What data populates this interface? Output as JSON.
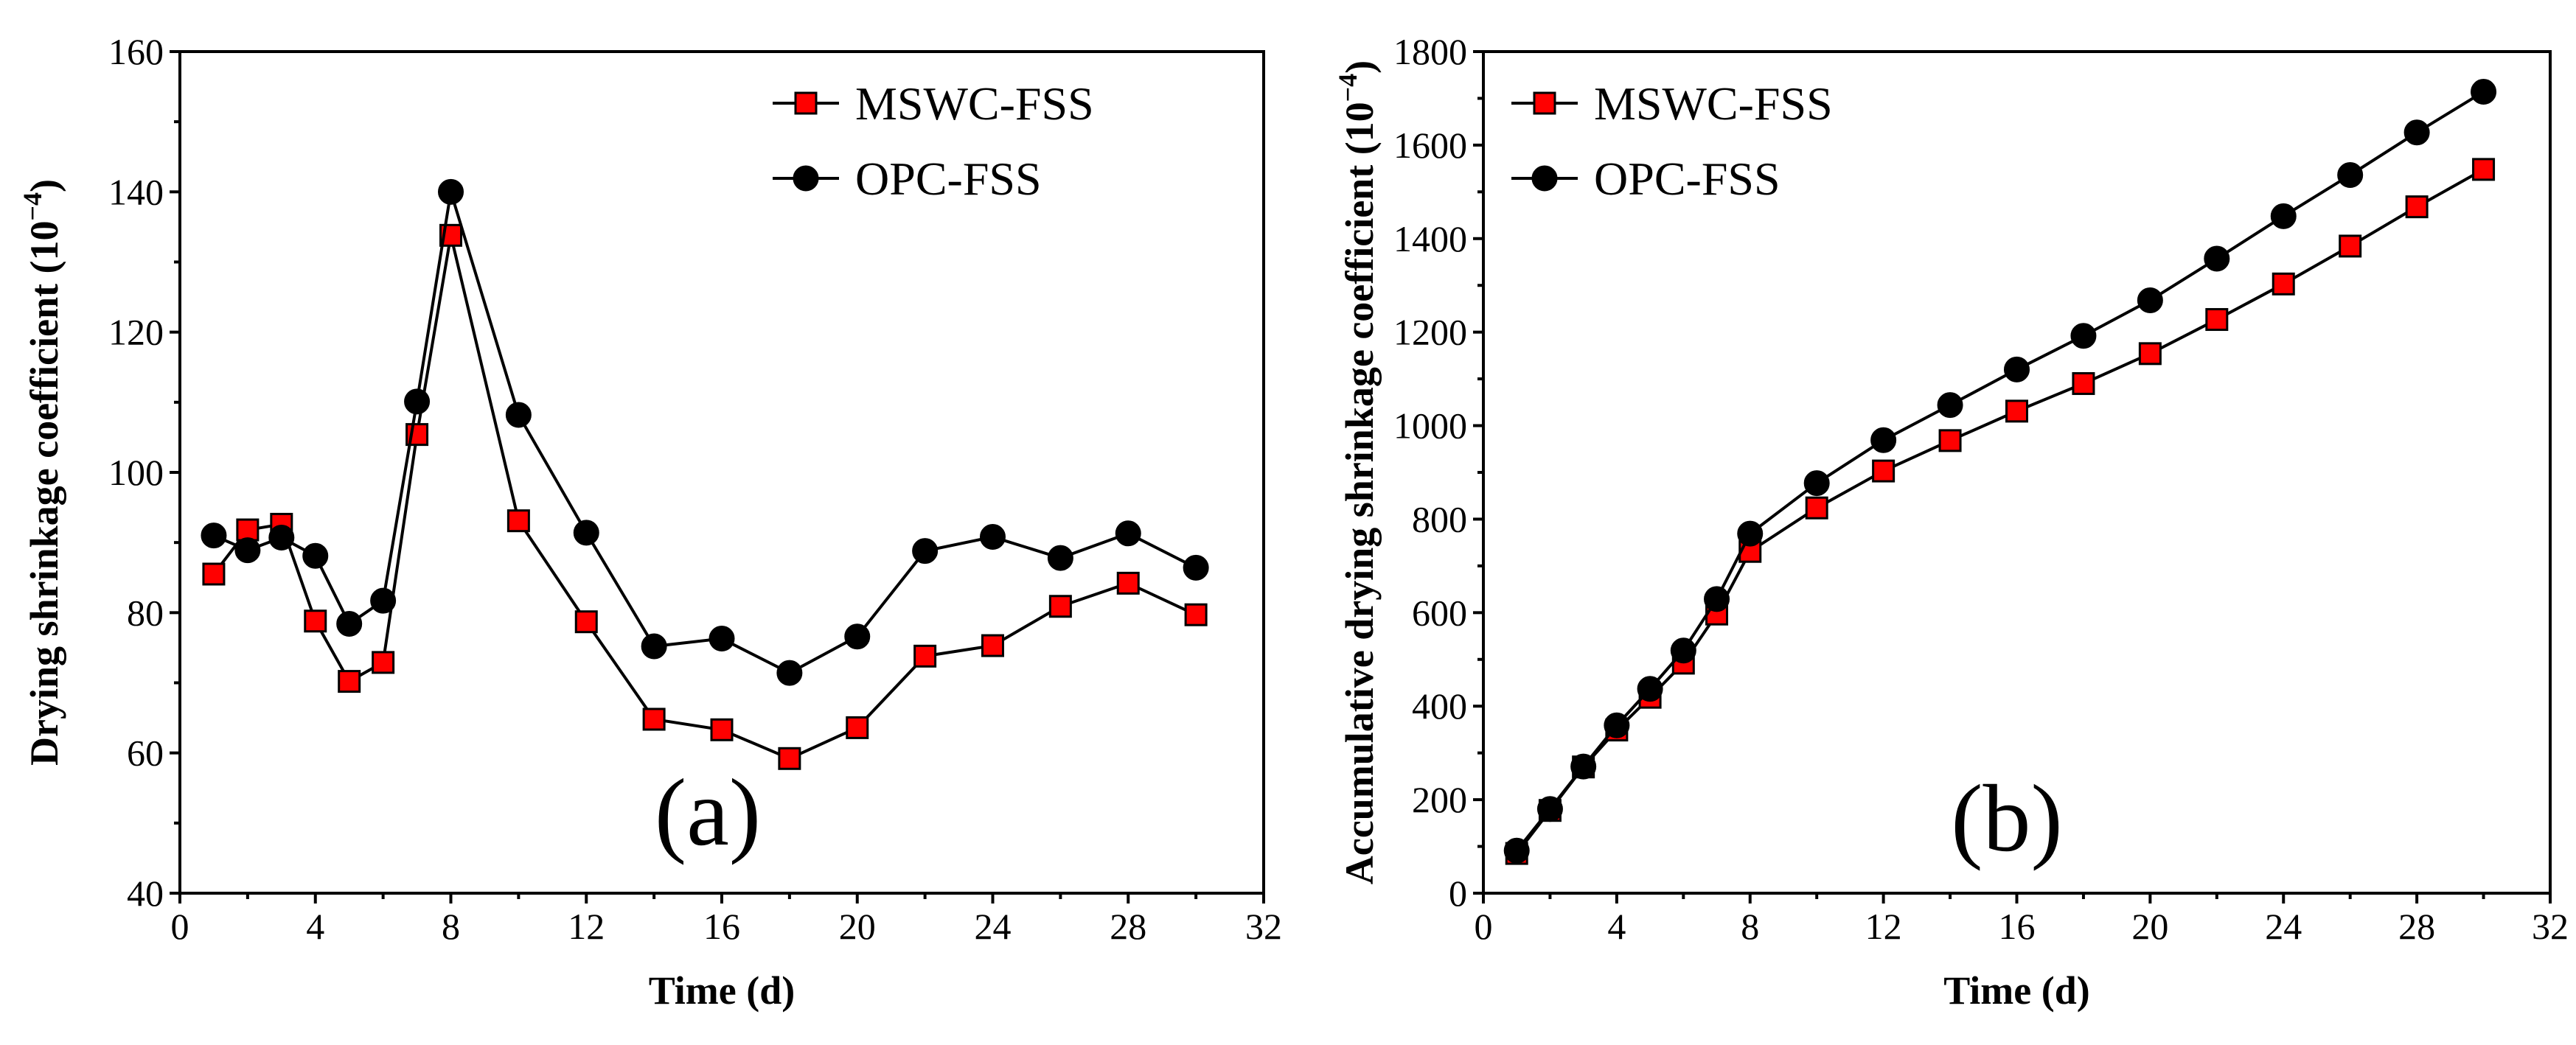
{
  "chart_data": [
    {
      "type": "line",
      "panel_label": "(a)",
      "xlabel": "Time (d)",
      "ylabel": "Drying shrinkage coefficient (10",
      "ylabel_exp": "−4",
      "ylabel_close": ")",
      "xlim": [
        0,
        32
      ],
      "ylim": [
        40,
        160
      ],
      "xticks": [
        0,
        4,
        8,
        12,
        16,
        20,
        24,
        28,
        32
      ],
      "xtick_labels": [
        "0",
        "4",
        "8",
        "12",
        "16",
        "20",
        "24",
        "28",
        "32"
      ],
      "yticks": [
        40,
        60,
        80,
        100,
        120,
        140,
        160
      ],
      "ytick_labels": [
        "40",
        "60",
        "80",
        "100",
        "120",
        "140",
        "160"
      ],
      "legend_position": "top-right",
      "series": [
        {
          "name": "MSWC-FSS",
          "marker": "square",
          "color": "#ff0000",
          "x": [
            1,
            2,
            3,
            4,
            5,
            6,
            7,
            8,
            10,
            12,
            14,
            16,
            18,
            20,
            22,
            24,
            26,
            28,
            30
          ],
          "y": [
            85.5,
            91.8,
            92.6,
            78.8,
            70.2,
            72.9,
            105.4,
            133.8,
            93.1,
            78.7,
            64.8,
            63.3,
            59.2,
            63.6,
            73.8,
            75.3,
            80.9,
            84.2,
            79.7
          ]
        },
        {
          "name": "OPC-FSS",
          "marker": "circle",
          "color": "#000000",
          "x": [
            1,
            2,
            3,
            4,
            5,
            6,
            7,
            8,
            10,
            12,
            14,
            16,
            18,
            20,
            22,
            24,
            26,
            28,
            30
          ],
          "y": [
            91.0,
            88.9,
            90.7,
            88.1,
            78.4,
            81.7,
            110.1,
            140.0,
            108.2,
            91.4,
            75.2,
            76.3,
            71.4,
            76.6,
            88.8,
            90.8,
            87.8,
            91.3,
            86.4
          ]
        }
      ]
    },
    {
      "type": "line",
      "panel_label": "(b)",
      "xlabel": "Time (d)",
      "ylabel": "Accumulative drying shrinkage coefficient (10",
      "ylabel_exp": "−4",
      "ylabel_close": ")",
      "xlim": [
        0,
        32
      ],
      "ylim": [
        0,
        1800
      ],
      "xticks": [
        0,
        4,
        8,
        12,
        16,
        20,
        24,
        28,
        32
      ],
      "xtick_labels": [
        "0",
        "4",
        "8",
        "12",
        "16",
        "20",
        "24",
        "28",
        "32"
      ],
      "yticks": [
        0,
        200,
        400,
        600,
        800,
        1000,
        1200,
        1400,
        1600,
        1800
      ],
      "ytick_labels": [
        "0",
        "200",
        "400",
        "600",
        "800",
        "1000",
        "1200",
        "1400",
        "1600",
        "1800"
      ],
      "legend_position": "top-left",
      "series": [
        {
          "name": "MSWC-FSS",
          "marker": "square",
          "color": "#ff0000",
          "x": [
            1,
            2,
            3,
            4,
            5,
            6,
            7,
            8,
            10,
            12,
            14,
            16,
            18,
            20,
            22,
            24,
            26,
            28,
            30
          ],
          "y": [
            85,
            177,
            270,
            349,
            419,
            492,
            597,
            731,
            824,
            903,
            968,
            1031,
            1090,
            1154,
            1227,
            1303,
            1384,
            1468,
            1548
          ]
        },
        {
          "name": "OPC-FSS",
          "marker": "circle",
          "color": "#000000",
          "x": [
            1,
            2,
            3,
            4,
            5,
            6,
            7,
            8,
            10,
            12,
            14,
            16,
            18,
            20,
            22,
            24,
            26,
            28,
            30
          ],
          "y": [
            91,
            180,
            271,
            359,
            437,
            519,
            629,
            769,
            877,
            969,
            1044,
            1120,
            1192,
            1268,
            1357,
            1448,
            1536,
            1627,
            1714
          ]
        }
      ]
    }
  ]
}
